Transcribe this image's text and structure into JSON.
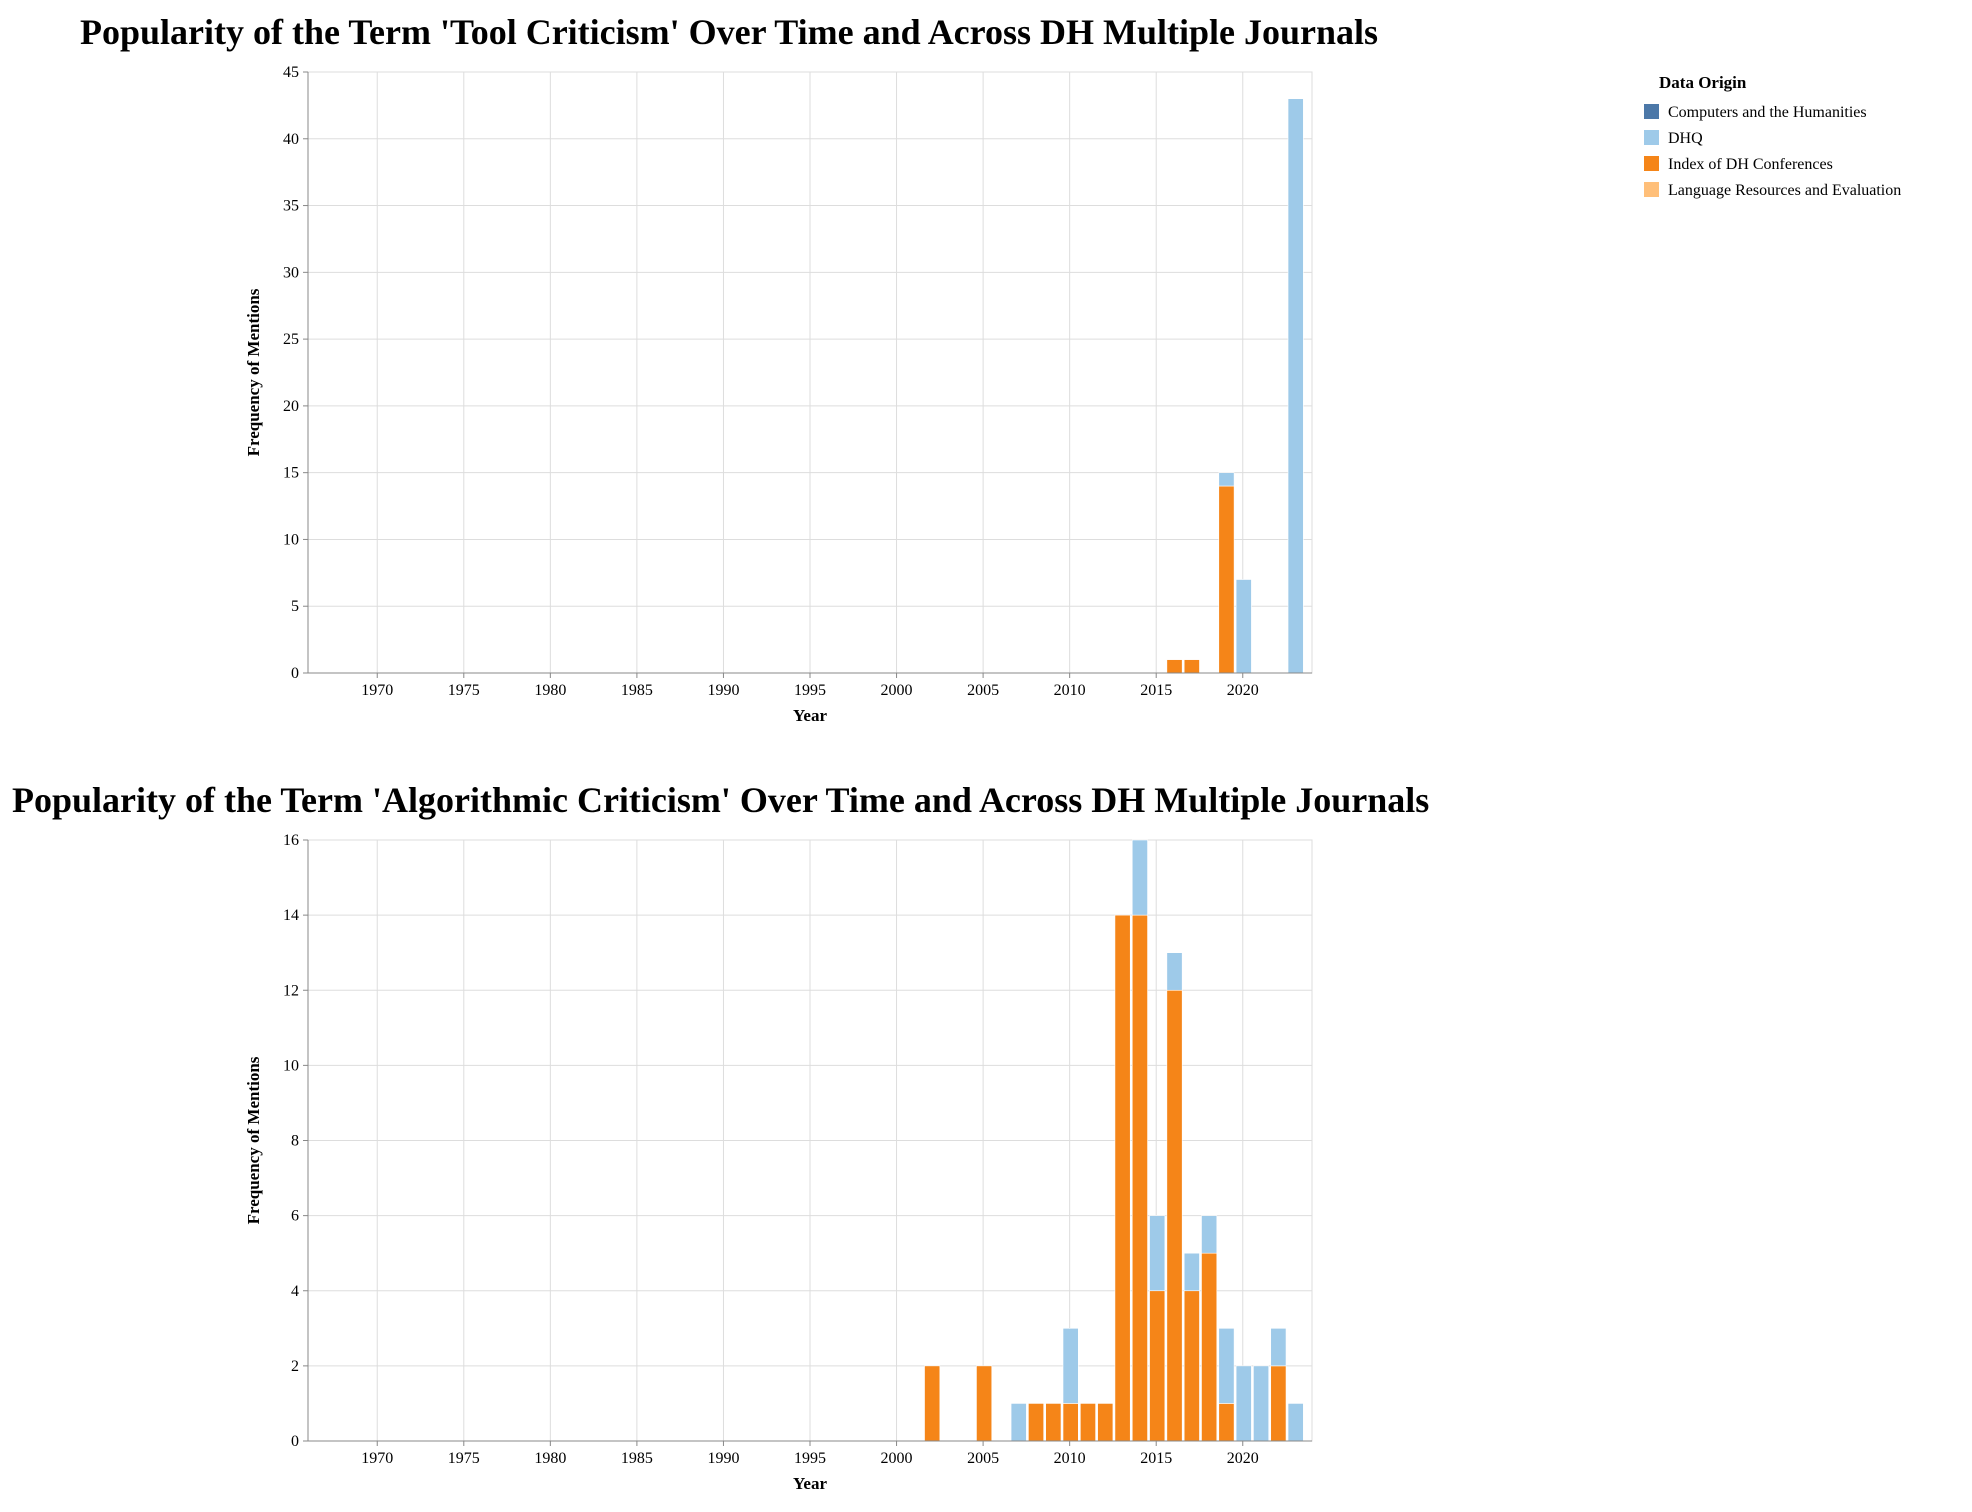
{
  "legend": {
    "title": "Data Origin",
    "items": [
      {
        "label": "Computers and the Humanities",
        "color": "#4c78a8"
      },
      {
        "label": "DHQ",
        "color": "#9ecae9"
      },
      {
        "label": "Index of DH Conferences",
        "color": "#f58518"
      },
      {
        "label": "Language Resources and Evaluation",
        "color": "#ffbf79"
      }
    ]
  },
  "chart_data": [
    {
      "type": "bar",
      "stacked": true,
      "title": "Popularity of the Term 'Tool Criticism' Over Time and Across DH Multiple Journals",
      "xlabel": "Year",
      "ylabel": "Frequency of Mentions",
      "xlim": [
        1966,
        2024
      ],
      "ylim": [
        0,
        45
      ],
      "xticks": [
        1970,
        1975,
        1980,
        1985,
        1990,
        1995,
        2000,
        2005,
        2010,
        2015,
        2020
      ],
      "yticks": [
        0,
        5,
        10,
        15,
        20,
        25,
        30,
        35,
        40,
        45
      ],
      "grid": true,
      "legend_position": "top-right",
      "series": [
        {
          "name": "Index of DH Conferences",
          "color": "#f58518",
          "points": [
            {
              "x": 2016,
              "y": 1
            },
            {
              "x": 2017,
              "y": 1
            },
            {
              "x": 2019,
              "y": 14
            }
          ]
        },
        {
          "name": "DHQ",
          "color": "#9ecae9",
          "points": [
            {
              "x": 2019,
              "y": 1
            },
            {
              "x": 2020,
              "y": 7
            },
            {
              "x": 2023,
              "y": 43
            }
          ]
        }
      ]
    },
    {
      "type": "bar",
      "stacked": true,
      "title": "Popularity of the Term 'Algorithmic Criticism' Over Time and Across DH Multiple Journals",
      "xlabel": "Year",
      "ylabel": "Frequency of Mentions",
      "xlim": [
        1966,
        2024
      ],
      "ylim": [
        0,
        16
      ],
      "xticks": [
        1970,
        1975,
        1980,
        1985,
        1990,
        1995,
        2000,
        2005,
        2010,
        2015,
        2020
      ],
      "yticks": [
        0,
        2,
        4,
        6,
        8,
        10,
        12,
        14,
        16
      ],
      "grid": true,
      "legend_position": "top-right",
      "series": [
        {
          "name": "Index of DH Conferences",
          "color": "#f58518",
          "points": [
            {
              "x": 2002,
              "y": 2
            },
            {
              "x": 2005,
              "y": 2
            },
            {
              "x": 2008,
              "y": 1
            },
            {
              "x": 2009,
              "y": 1
            },
            {
              "x": 2010,
              "y": 1
            },
            {
              "x": 2011,
              "y": 1
            },
            {
              "x": 2012,
              "y": 1
            },
            {
              "x": 2013,
              "y": 14
            },
            {
              "x": 2014,
              "y": 14
            },
            {
              "x": 2015,
              "y": 4
            },
            {
              "x": 2016,
              "y": 12
            },
            {
              "x": 2017,
              "y": 4
            },
            {
              "x": 2018,
              "y": 5
            },
            {
              "x": 2019,
              "y": 1
            },
            {
              "x": 2022,
              "y": 2
            }
          ]
        },
        {
          "name": "DHQ",
          "color": "#9ecae9",
          "points": [
            {
              "x": 2007,
              "y": 1
            },
            {
              "x": 2010,
              "y": 2
            },
            {
              "x": 2014,
              "y": 2
            },
            {
              "x": 2015,
              "y": 2
            },
            {
              "x": 2016,
              "y": 1
            },
            {
              "x": 2017,
              "y": 1
            },
            {
              "x": 2018,
              "y": 1
            },
            {
              "x": 2019,
              "y": 2
            },
            {
              "x": 2020,
              "y": 2
            },
            {
              "x": 2021,
              "y": 2
            },
            {
              "x": 2022,
              "y": 1
            },
            {
              "x": 2023,
              "y": 1
            }
          ]
        }
      ]
    }
  ]
}
